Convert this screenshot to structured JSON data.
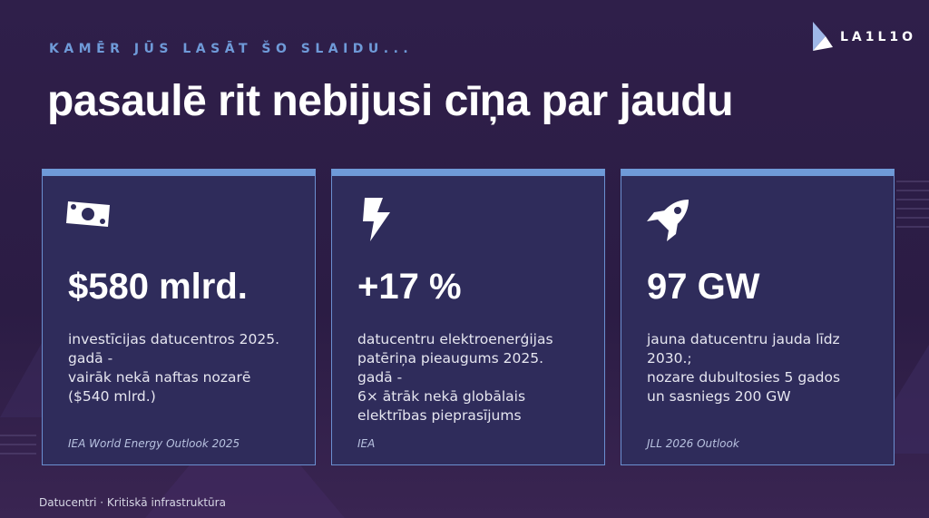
{
  "header": {
    "kicker": "KAMĒR JŪS LASĀT ŠO SLAIDU...",
    "title": "pasaulē rit nebijusi cīņa par jaudu",
    "logo": "LA1L1O"
  },
  "cards": [
    {
      "value": "$580 mlrd.",
      "description": [
        "investīcijas datucentros 2025.",
        "gadā -",
        "vairāk nekā naftas nozarē",
        "($540 mlrd.)"
      ],
      "source": "IEA World Energy Outlook 2025"
    },
    {
      "value": "+17 %",
      "description": [
        "datucentru elektroenerģijas",
        "patēriņa pieaugums 2025.",
        "gadā -",
        "6× ātrāk nekā globālais",
        "elektrības pieprasījums"
      ],
      "source": "IEA"
    },
    {
      "value": "97 GW",
      "description": [
        "jauna datucentru jauda līdz",
        "2030.;",
        "nozare dubultosies 5 gados",
        "un sasniegs 200 GW"
      ],
      "source": "JLL 2026 Outlook"
    }
  ],
  "footer": "Datucentri · Kritiskā infrastruktūra"
}
